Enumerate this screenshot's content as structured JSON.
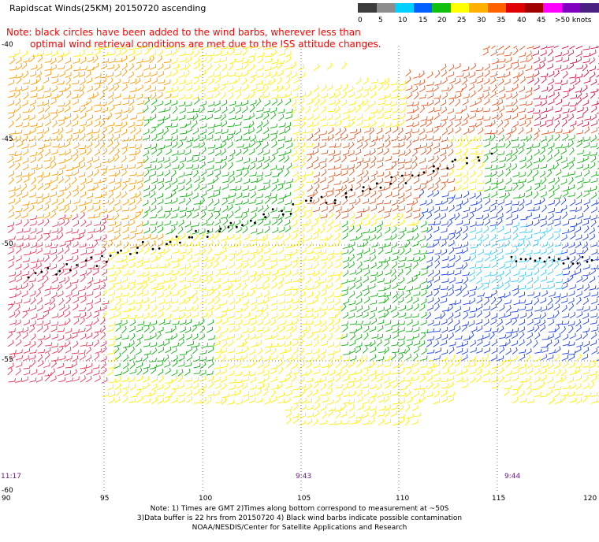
{
  "header": {
    "title": "Rapidscat Winds(25KM) 20150720 ascending",
    "note_line1": "Note: black circles have been added to the wind barbs, wherever less than",
    "note_line2": "optimal wind retrieval conditions are met due to the ISS attitude changes."
  },
  "legend": {
    "labels": [
      "0",
      "5",
      "10",
      "15",
      "20",
      "25",
      "30",
      "35",
      "40",
      "45",
      ">50 knots"
    ],
    "colors": [
      "#3c3c3c",
      "#8c8c8c",
      "#00d0ff",
      "#0060ff",
      "#10c010",
      "#ffff00",
      "#ffb000",
      "#ff6000",
      "#e00000",
      "#a00000",
      "#ff00ff",
      "#8000c0",
      "#4a2080"
    ]
  },
  "axes": {
    "lon_labels": [
      "90",
      "95",
      "100",
      "105",
      "110",
      "115",
      "120"
    ],
    "lat_labels": [
      "-40",
      "-45",
      "-50",
      "-55",
      "-60"
    ]
  },
  "times": [
    "11:17",
    "9:43",
    "9:44"
  ],
  "footer": {
    "line1": "Note: 1) Times are GMT 2)Times along bottom correspond to measurement at ~50S",
    "line2": "3)Data buffer is 22 hrs from 20150720 4) Black wind barbs indicate possible contamination",
    "line3": "NOAA/NESDIS/Center for Satellite Applications and Research"
  }
}
